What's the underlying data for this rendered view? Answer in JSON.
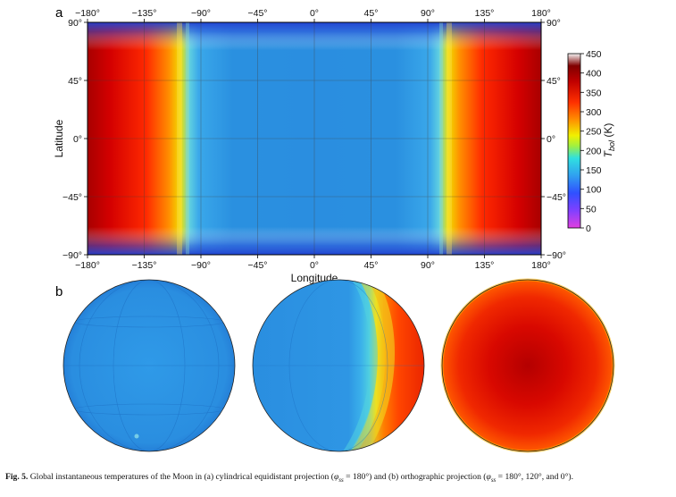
{
  "panel_a": {
    "label": "a",
    "x_label": "Longitude",
    "y_label": "Latitude",
    "lon_ticks": [
      "−180°",
      "−135°",
      "−90°",
      "−45°",
      "0°",
      "45°",
      "90°",
      "135°",
      "180°"
    ],
    "lat_ticks_left": [
      "90°",
      "45°",
      "0°",
      "−45°",
      "−90°"
    ],
    "lat_ticks_right": [
      "90°",
      "45°",
      "0°",
      "−45°",
      "−90°"
    ],
    "colorbar": {
      "label_main": "T",
      "label_sub": "bol",
      "label_unit": " (K)",
      "ticks": [
        "450",
        "400",
        "350",
        "300",
        "250",
        "200",
        "150",
        "100",
        "50",
        "0"
      ],
      "range": [
        0,
        450
      ]
    },
    "subsolar_longitude": "180°"
  },
  "panel_b": {
    "label": "b",
    "globes": [
      {
        "subsolar_longitude": "180°"
      },
      {
        "subsolar_longitude": "120°"
      },
      {
        "subsolar_longitude": "0°"
      }
    ]
  },
  "caption": {
    "fig": "Fig. 5.",
    "text1": " Global instantaneous temperatures of the Moon in (a) cylindrical equidistant projection (",
    "sym1": "φ",
    "sub1": "ss",
    "text2": " = 180°) and (b) orthographic projection (",
    "sym2": "φ",
    "sub2": "ss",
    "text3": " = 180°, 120°, and 0°)."
  },
  "colors": {
    "hot": "#b00000",
    "red": "#e60000",
    "orange": "#ff7800",
    "yellow": "#f0e000",
    "cyan": "#30c8e8",
    "cold": "#1f86e2",
    "polar": "#2040c8"
  }
}
